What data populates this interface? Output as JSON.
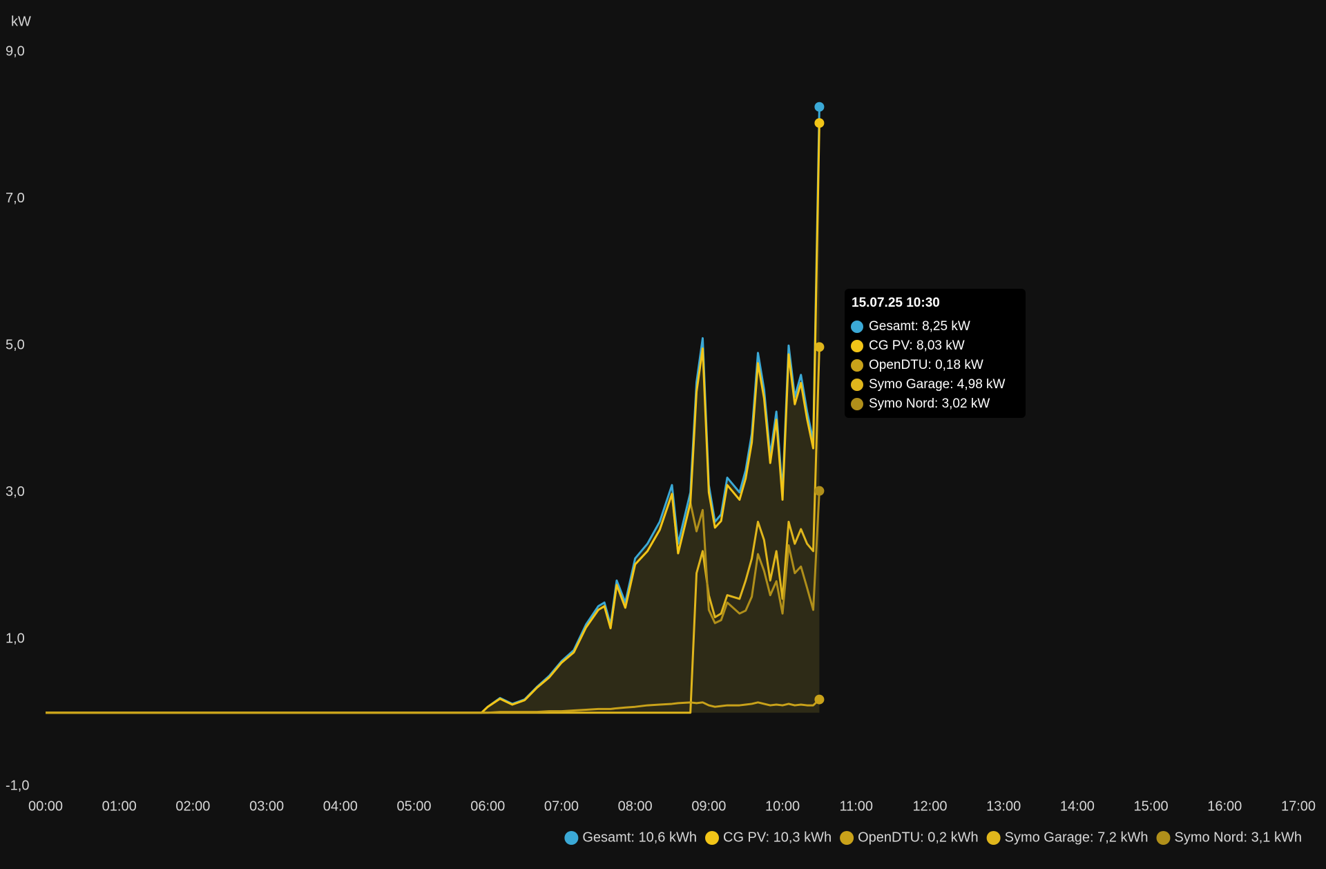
{
  "chart_data": {
    "type": "line",
    "y_label": "kW",
    "ylim": [
      -1,
      9
    ],
    "yticks": [
      {
        "value": -1,
        "label": "-1,0"
      },
      {
        "value": 1,
        "label": "1,0"
      },
      {
        "value": 3,
        "label": "3,0"
      },
      {
        "value": 5,
        "label": "5,0"
      },
      {
        "value": 7,
        "label": "7,0"
      },
      {
        "value": 9,
        "label": "9,0"
      }
    ],
    "xlim": [
      "00:00",
      "17:00"
    ],
    "xticks": [
      "00:00",
      "01:00",
      "02:00",
      "03:00",
      "04:00",
      "05:00",
      "06:00",
      "07:00",
      "08:00",
      "09:00",
      "10:00",
      "11:00",
      "12:00",
      "13:00",
      "14:00",
      "15:00",
      "16:00",
      "17:00"
    ],
    "grid": false,
    "legend": "bottom-right",
    "x": [
      "00:00",
      "05:55",
      "06:00",
      "06:10",
      "06:20",
      "06:30",
      "06:40",
      "06:50",
      "07:00",
      "07:10",
      "07:20",
      "07:30",
      "07:35",
      "07:40",
      "07:45",
      "07:52",
      "08:00",
      "08:10",
      "08:20",
      "08:30",
      "08:35",
      "08:45",
      "08:50",
      "08:55",
      "09:00",
      "09:05",
      "09:10",
      "09:15",
      "09:25",
      "09:30",
      "09:35",
      "09:40",
      "09:45",
      "09:50",
      "09:55",
      "10:00",
      "10:05",
      "10:10",
      "10:15",
      "10:20",
      "10:25",
      "10:30"
    ],
    "series": [
      {
        "name": "Gesamt",
        "legend": "Gesamt: 10,6 kWh",
        "color": "#3ba9d6",
        "fill": true,
        "values": [
          0,
          0,
          0.08,
          0.2,
          0.12,
          0.18,
          0.35,
          0.5,
          0.7,
          0.85,
          1.2,
          1.45,
          1.5,
          1.2,
          1.8,
          1.5,
          2.1,
          2.3,
          2.6,
          3.1,
          2.3,
          3.0,
          4.5,
          5.1,
          3.1,
          2.6,
          2.7,
          3.2,
          3.0,
          3.3,
          3.8,
          4.9,
          4.4,
          3.5,
          4.1,
          3.0,
          5.0,
          4.3,
          4.6,
          4.1,
          3.7,
          8.25
        ]
      },
      {
        "name": "CG PV",
        "legend": "CG PV: 10,3 kWh",
        "color": "#f2c518",
        "values": [
          0,
          0,
          0.08,
          0.19,
          0.11,
          0.17,
          0.34,
          0.48,
          0.68,
          0.82,
          1.16,
          1.4,
          1.45,
          1.15,
          1.74,
          1.43,
          2.02,
          2.2,
          2.49,
          2.98,
          2.17,
          2.86,
          4.37,
          4.96,
          3.0,
          2.52,
          2.61,
          3.1,
          2.9,
          3.19,
          3.68,
          4.76,
          4.28,
          3.4,
          3.99,
          2.9,
          4.88,
          4.2,
          4.49,
          4.0,
          3.6,
          8.03
        ]
      },
      {
        "name": "OpenDTU",
        "legend": "OpenDTU: 0,2 kWh",
        "color": "#c9a21a",
        "values": [
          0,
          0,
          0,
          0.01,
          0.01,
          0.01,
          0.01,
          0.02,
          0.02,
          0.03,
          0.04,
          0.05,
          0.05,
          0.05,
          0.06,
          0.07,
          0.08,
          0.1,
          0.11,
          0.12,
          0.13,
          0.14,
          0.13,
          0.14,
          0.1,
          0.08,
          0.09,
          0.1,
          0.1,
          0.11,
          0.12,
          0.14,
          0.12,
          0.1,
          0.11,
          0.1,
          0.12,
          0.1,
          0.11,
          0.1,
          0.1,
          0.18
        ]
      },
      {
        "name": "Symo Garage",
        "legend": "Symo Garage: 7,2 kWh",
        "color": "#e0b61c",
        "values": [
          0,
          0,
          0,
          0,
          0,
          0,
          0,
          0,
          0,
          0,
          0,
          0,
          0,
          0,
          0,
          0,
          0,
          0,
          0,
          0,
          0,
          0,
          1.9,
          2.2,
          1.6,
          1.3,
          1.35,
          1.6,
          1.55,
          1.8,
          2.1,
          2.6,
          2.35,
          1.8,
          2.2,
          1.55,
          2.6,
          2.3,
          2.5,
          2.3,
          2.2,
          4.98
        ]
      },
      {
        "name": "Symo Nord",
        "legend": "Symo Nord: 3,1 kWh",
        "color": "#b08f1a",
        "values": [
          0,
          0,
          0.08,
          0.19,
          0.11,
          0.17,
          0.34,
          0.48,
          0.68,
          0.82,
          1.16,
          1.4,
          1.45,
          1.15,
          1.74,
          1.43,
          2.02,
          2.2,
          2.49,
          2.98,
          2.17,
          2.86,
          2.47,
          2.76,
          1.4,
          1.22,
          1.26,
          1.5,
          1.35,
          1.39,
          1.58,
          2.16,
          1.93,
          1.6,
          1.79,
          1.35,
          2.28,
          1.9,
          1.99,
          1.7,
          1.4,
          3.02
        ]
      }
    ],
    "tooltip": {
      "title": "15.07.25 10:30",
      "items": [
        "Gesamt: 8,25 kW",
        "CG PV: 8,03 kW",
        "OpenDTU: 0,18 kW",
        "Symo Garage: 4,98 kW",
        "Symo Nord: 3,02 kW"
      ]
    }
  }
}
